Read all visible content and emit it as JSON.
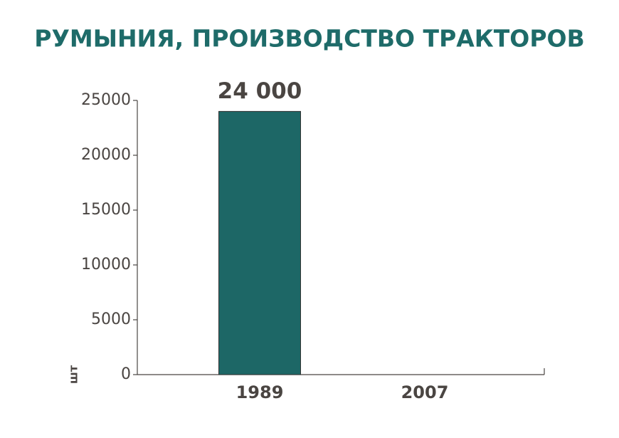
{
  "chart_data": {
    "type": "bar",
    "title": "РУМЫНИЯ, ПРОИЗВОДСТВО ТРАКТОРОВ",
    "y_label": "шт",
    "categories": [
      "1989",
      "2007"
    ],
    "values": [
      24000,
      0
    ],
    "value_labels": [
      "24 000",
      null
    ],
    "color": "#1d6766",
    "ylim": [
      0,
      25000
    ],
    "yticks": [
      0,
      5000,
      10000,
      15000,
      20000,
      25000
    ],
    "grid": false
  }
}
